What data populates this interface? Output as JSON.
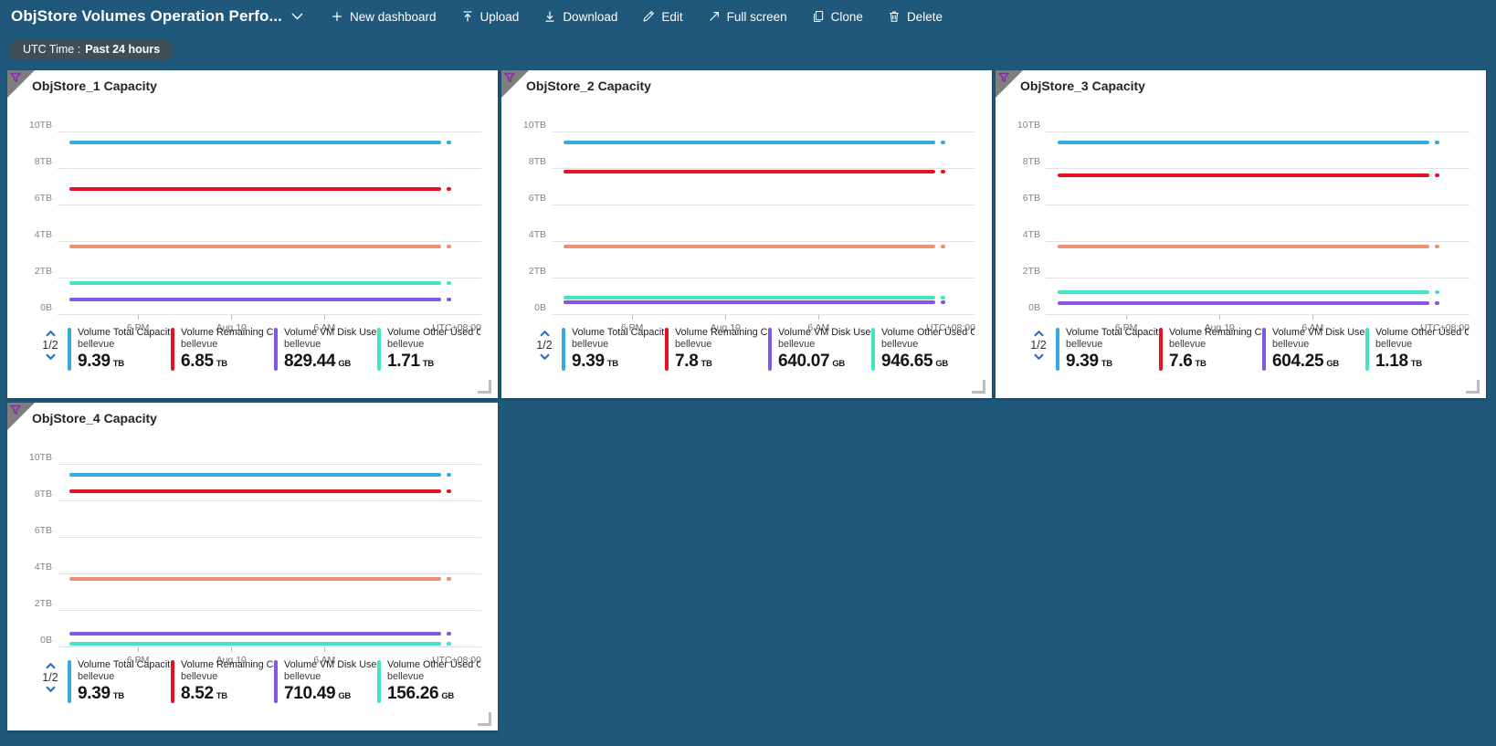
{
  "toolbar": {
    "title": "ObjStore Volumes Operation Perfo...",
    "actions": [
      {
        "label": "New dashboard"
      },
      {
        "label": "Upload"
      },
      {
        "label": "Download"
      },
      {
        "label": "Edit"
      },
      {
        "label": "Full screen"
      },
      {
        "label": "Clone"
      },
      {
        "label": "Delete"
      }
    ]
  },
  "time_filter": {
    "prefix": "UTC Time :",
    "value": "Past 24 hours"
  },
  "colors": {
    "page_background": "#1f587a",
    "tile_background": "#ffffff",
    "pill_background": "#3f4e57",
    "series_blue": "#35aae1",
    "series_red": "#e81123",
    "series_purple": "#8257e6",
    "series_teal": "#3fe5c5",
    "series_orange": "#ee9173",
    "filter_pin_purple": "#8A2DA5"
  },
  "chart_data": [
    {
      "type": "line",
      "title": "ObjStore_1 Capacity",
      "x_ticks": [
        "6 PM",
        "Aug 10",
        "6 AM"
      ],
      "x_right_label": "UTC+08:00",
      "y_ticks": [
        "10TB",
        "8TB",
        "6TB",
        "4TB",
        "2TB",
        "0B"
      ],
      "ylim_tb": [
        0,
        10
      ],
      "legend_page": "1/2",
      "series": [
        {
          "label": "Volume Total Capacit...",
          "resource": "bellevue",
          "value": "9.39",
          "unit": "TB",
          "value_tb": 9.39,
          "color": "#35aae1",
          "in_legend": true
        },
        {
          "label": "Volume Remaining Cap...",
          "resource": "bellevue",
          "value": "6.85",
          "unit": "TB",
          "value_tb": 6.85,
          "color": "#e81123",
          "in_legend": true
        },
        {
          "label": "Volume VM Disk Used ...",
          "resource": "bellevue",
          "value": "829.44",
          "unit": "GB",
          "value_tb": 0.81,
          "color": "#8257e6",
          "in_legend": true
        },
        {
          "label": "Volume Other Used Ca...",
          "resource": "bellevue",
          "value": "1.71",
          "unit": "TB",
          "value_tb": 1.71,
          "color": "#3fe5c5",
          "in_legend": true
        },
        {
          "label": "",
          "resource": "",
          "value": "",
          "unit": "",
          "value_tb": 3.7,
          "color": "#ee9173",
          "in_legend": false
        }
      ]
    },
    {
      "type": "line",
      "title": "ObjStore_2 Capacity",
      "x_ticks": [
        "6 PM",
        "Aug 10",
        "6 AM"
      ],
      "x_right_label": "UTC+08:00",
      "y_ticks": [
        "10TB",
        "8TB",
        "6TB",
        "4TB",
        "2TB",
        "0B"
      ],
      "ylim_tb": [
        0,
        10
      ],
      "legend_page": "1/2",
      "series": [
        {
          "label": "Volume Total Capacit...",
          "resource": "bellevue",
          "value": "9.39",
          "unit": "TB",
          "value_tb": 9.39,
          "color": "#35aae1",
          "in_legend": true
        },
        {
          "label": "Volume Remaining Cap...",
          "resource": "bellevue",
          "value": "7.8",
          "unit": "TB",
          "value_tb": 7.8,
          "color": "#e81123",
          "in_legend": true
        },
        {
          "label": "Volume VM Disk Used ...",
          "resource": "bellevue",
          "value": "640.07",
          "unit": "GB",
          "value_tb": 0.63,
          "color": "#8257e6",
          "in_legend": true
        },
        {
          "label": "Volume Other Used Ca...",
          "resource": "bellevue",
          "value": "946.65",
          "unit": "GB",
          "value_tb": 0.92,
          "color": "#3fe5c5",
          "in_legend": true
        },
        {
          "label": "",
          "resource": "",
          "value": "",
          "unit": "",
          "value_tb": 3.7,
          "color": "#ee9173",
          "in_legend": false
        }
      ]
    },
    {
      "type": "line",
      "title": "ObjStore_3 Capacity",
      "x_ticks": [
        "6 PM",
        "Aug 10",
        "6 AM"
      ],
      "x_right_label": "UTC+08:00",
      "y_ticks": [
        "10TB",
        "8TB",
        "6TB",
        "4TB",
        "2TB",
        "0B"
      ],
      "ylim_tb": [
        0,
        10
      ],
      "legend_page": "1/2",
      "series": [
        {
          "label": "Volume Total Capacit...",
          "resource": "bellevue",
          "value": "9.39",
          "unit": "TB",
          "value_tb": 9.39,
          "color": "#35aae1",
          "in_legend": true
        },
        {
          "label": "Volume Remaining Cap...",
          "resource": "bellevue",
          "value": "7.6",
          "unit": "TB",
          "value_tb": 7.6,
          "color": "#e81123",
          "in_legend": true
        },
        {
          "label": "Volume VM Disk Used ...",
          "resource": "bellevue",
          "value": "604.25",
          "unit": "GB",
          "value_tb": 0.59,
          "color": "#8257e6",
          "in_legend": true
        },
        {
          "label": "Volume Other Used Ca...",
          "resource": "bellevue",
          "value": "1.18",
          "unit": "TB",
          "value_tb": 1.18,
          "color": "#3fe5c5",
          "in_legend": true
        },
        {
          "label": "",
          "resource": "",
          "value": "",
          "unit": "",
          "value_tb": 3.7,
          "color": "#ee9173",
          "in_legend": false
        }
      ]
    },
    {
      "type": "line",
      "title": "ObjStore_4 Capacity",
      "x_ticks": [
        "6 PM",
        "Aug 10",
        "6 AM"
      ],
      "x_right_label": "UTC+08:00",
      "y_ticks": [
        "10TB",
        "8TB",
        "6TB",
        "4TB",
        "2TB",
        "0B"
      ],
      "ylim_tb": [
        0,
        10
      ],
      "legend_page": "1/2",
      "series": [
        {
          "label": "Volume Total Capacit...",
          "resource": "bellevue",
          "value": "9.39",
          "unit": "TB",
          "value_tb": 9.39,
          "color": "#35aae1",
          "in_legend": true
        },
        {
          "label": "Volume Remaining Cap...",
          "resource": "bellevue",
          "value": "8.52",
          "unit": "TB",
          "value_tb": 8.52,
          "color": "#e81123",
          "in_legend": true
        },
        {
          "label": "Volume VM Disk Used ...",
          "resource": "bellevue",
          "value": "710.49",
          "unit": "GB",
          "value_tb": 0.69,
          "color": "#8257e6",
          "in_legend": true
        },
        {
          "label": "Volume Other Used Ca...",
          "resource": "bellevue",
          "value": "156.26",
          "unit": "GB",
          "value_tb": 0.15,
          "color": "#3fe5c5",
          "in_legend": true
        },
        {
          "label": "",
          "resource": "",
          "value": "",
          "unit": "",
          "value_tb": 3.7,
          "color": "#ee9173",
          "in_legend": false
        }
      ]
    }
  ]
}
